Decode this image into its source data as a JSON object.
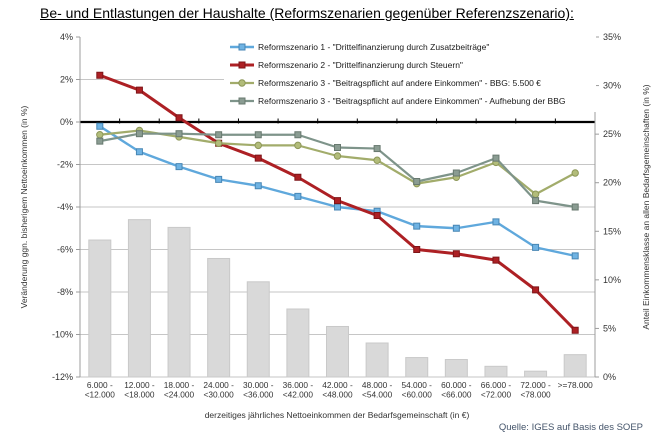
{
  "title": "Be- und Entlastungen der Haushalte (Reformszenarien gegenüber Referenzszenario):",
  "source": "Quelle: IGES auf Basis des SOEP",
  "source_color": "#44546A",
  "chart_data": {
    "type": "combo-line-bar",
    "x_axis_title": "derzeitiges jährliches Nettoeinkommen der Bedarfsgemeinschaft (in €)",
    "categories_line1": [
      "6.000 -",
      "12.000 -",
      "18.000 -",
      "24.000 -",
      "30.000 -",
      "36.000 -",
      "42.000 -",
      "48.000 -",
      "54.000 -",
      "60.000 -",
      "66.000 -",
      "72.000 -",
      ">=78.000"
    ],
    "categories_line2": [
      "<12.000",
      "<18.000",
      "<24.000",
      "<30.000",
      "<36.000",
      "<42.000",
      "<48.000",
      "<54.000",
      "<60.000",
      "<66.000",
      "<72.000",
      "<78.000",
      ""
    ],
    "left_axis": {
      "title": "Veränderung ggn. bisherigem Nettoeinkommen (in %)",
      "min": -12,
      "max": 4,
      "tick_values": [
        4,
        2,
        0,
        -2,
        -4,
        -6,
        -8,
        -10,
        -12
      ],
      "tick_labels": [
        "4%",
        "2%",
        "0%",
        "-2%",
        "-4%",
        "-6%",
        "-8%",
        "-10%",
        "-12%"
      ]
    },
    "right_axis": {
      "title": "Anteil Einkommensklasse an allen Bedarfsgemeinschaften (in %)",
      "min": 0,
      "max": 35,
      "tick_values": [
        35,
        30,
        25,
        20,
        15,
        10,
        5,
        0
      ],
      "tick_labels": [
        "35%",
        "30%",
        "25%",
        "20%",
        "15%",
        "10%",
        "5%",
        "0%"
      ]
    },
    "grid": "horizontal-on",
    "legend_position": "top-center-inside",
    "bars": {
      "name": "Anteil Einkommensklasse an allen Bedarfsgemeinschaften",
      "axis": "right",
      "fill": "#D9D9D9",
      "stroke": "#C9C9C9",
      "values": [
        14.1,
        16.2,
        15.4,
        12.2,
        9.8,
        7.0,
        5.2,
        3.5,
        2.0,
        1.8,
        1.1,
        0.6,
        2.3
      ]
    },
    "series": [
      {
        "name": "Reformszenario 1 - \"Drittelfinanzierung durch Zusatzbeiträge\"",
        "axis": "left",
        "marker": "square",
        "line_width": 2.4,
        "color": "#5FA8DC",
        "marker_fill": "#6FB3E3",
        "marker_stroke": "#4786B4",
        "values": [
          -0.2,
          -1.4,
          -2.1,
          -2.7,
          -3.0,
          -3.5,
          -4.0,
          -4.2,
          -4.9,
          -5.0,
          -4.7,
          -5.9,
          -6.3
        ]
      },
      {
        "name": "Reformszenario 2 - \"Drittelfinanzierung durch Steuern\"",
        "axis": "left",
        "marker": "square",
        "line_width": 3.0,
        "color": "#AD2024",
        "marker_fill": "#AD2024",
        "marker_stroke": "#7E1518",
        "values": [
          2.2,
          1.5,
          0.2,
          -1.0,
          -1.7,
          -2.6,
          -3.7,
          -4.4,
          -6.0,
          -6.2,
          -6.5,
          -7.9,
          -9.8
        ]
      },
      {
        "name": "Reformszenario 3 - \"Beitragspflicht auf andere Einkommen\" - BBG: 5.500 €",
        "axis": "left",
        "marker": "circle",
        "line_width": 2.2,
        "color": "#A2AC6B",
        "marker_fill": "#B2BC7A",
        "marker_stroke": "#8D9758",
        "values": [
          -0.6,
          -0.4,
          -0.7,
          -1.0,
          -1.1,
          -1.1,
          -1.6,
          -1.8,
          -2.9,
          -2.6,
          -1.9,
          -3.4,
          -2.4
        ]
      },
      {
        "name": "Reformszenario 3 - \"Beitragspflicht auf andere Einkommen\" - Aufhebung der BBG",
        "axis": "left",
        "marker": "square",
        "line_width": 2.2,
        "color": "#7E948A",
        "marker_fill": "#8A9C92",
        "marker_stroke": "#68796F",
        "values": [
          -0.9,
          -0.55,
          -0.55,
          -0.6,
          -0.6,
          -0.6,
          -1.2,
          -1.25,
          -2.8,
          -2.4,
          -1.7,
          -3.7,
          -4.0
        ]
      }
    ]
  }
}
